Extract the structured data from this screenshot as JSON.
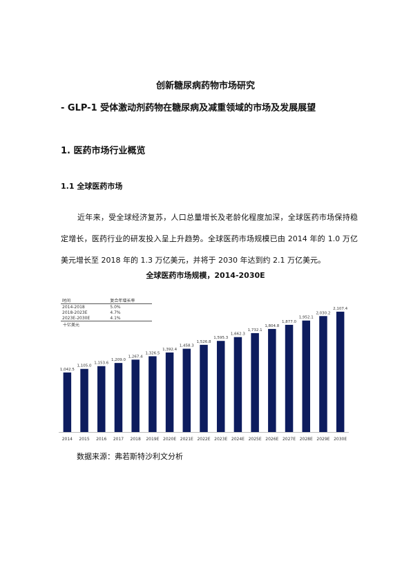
{
  "document": {
    "title": "创新糖尿病药物市场研究",
    "subtitle": "- GLP-1 受体激动剂药物在糖尿病及减重领域的市场及发展展望",
    "section_heading": "1.  医药市场行业概览",
    "subsection_heading": "1.1  全球医药市场",
    "paragraph": "近年来，受全球经济复苏，人口总量增长及老龄化程度加深，全球医药市场保持稳定增长，医药行业的研发投入呈上升趋势。全球医药市场规模已由 2014 年的 1.0 万亿美元增长至 2018 年的 1.3 万亿美元，并将于 2030 年达到约 2.1 万亿美元。",
    "figure_title": "全球医药市场规模，2014-2030E",
    "source": "数据来源：弗若斯特沙利文分析"
  },
  "cagr_table": {
    "headers": [
      "时间",
      "复合年增长率"
    ],
    "rows": [
      [
        "2014-2018",
        "5.0%"
      ],
      [
        "2018-2023E",
        "4.7%"
      ],
      [
        "2023E-2030E",
        "4.1%"
      ]
    ],
    "unit": "十亿美元"
  },
  "chart_data": {
    "type": "bar",
    "title": "全球医药市场规模，2014-2030E",
    "unit": "十亿美元",
    "categories": [
      "2014",
      "2015",
      "2016",
      "2017",
      "2018",
      "2019E",
      "2020E",
      "2021E",
      "2022E",
      "2023E",
      "2024E",
      "2025E",
      "2026E",
      "2027E",
      "2028E",
      "2029E",
      "2030E"
    ],
    "values": [
      1042.5,
      1105.0,
      1153.6,
      1209.0,
      1267.4,
      1326.5,
      1392.4,
      1458.3,
      1526.8,
      1595.3,
      1662.3,
      1732.1,
      1804.8,
      1877.0,
      1952.1,
      2030.2,
      2107.4
    ],
    "value_labels": [
      "1,042.5",
      "1,105.0",
      "1,153.6",
      "1,209.0",
      "1,267.4",
      "1,326.5",
      "1,392.4",
      "1,458.3",
      "1,526.8",
      "1,595.3",
      "1,662.3",
      "1,732.1",
      "1,804.8",
      "1,877.0",
      "1,952.1",
      "2,030.2",
      "2,107.4"
    ],
    "ylim": [
      0,
      2300
    ],
    "grid": false,
    "bar_color": "#0d1c5e"
  }
}
